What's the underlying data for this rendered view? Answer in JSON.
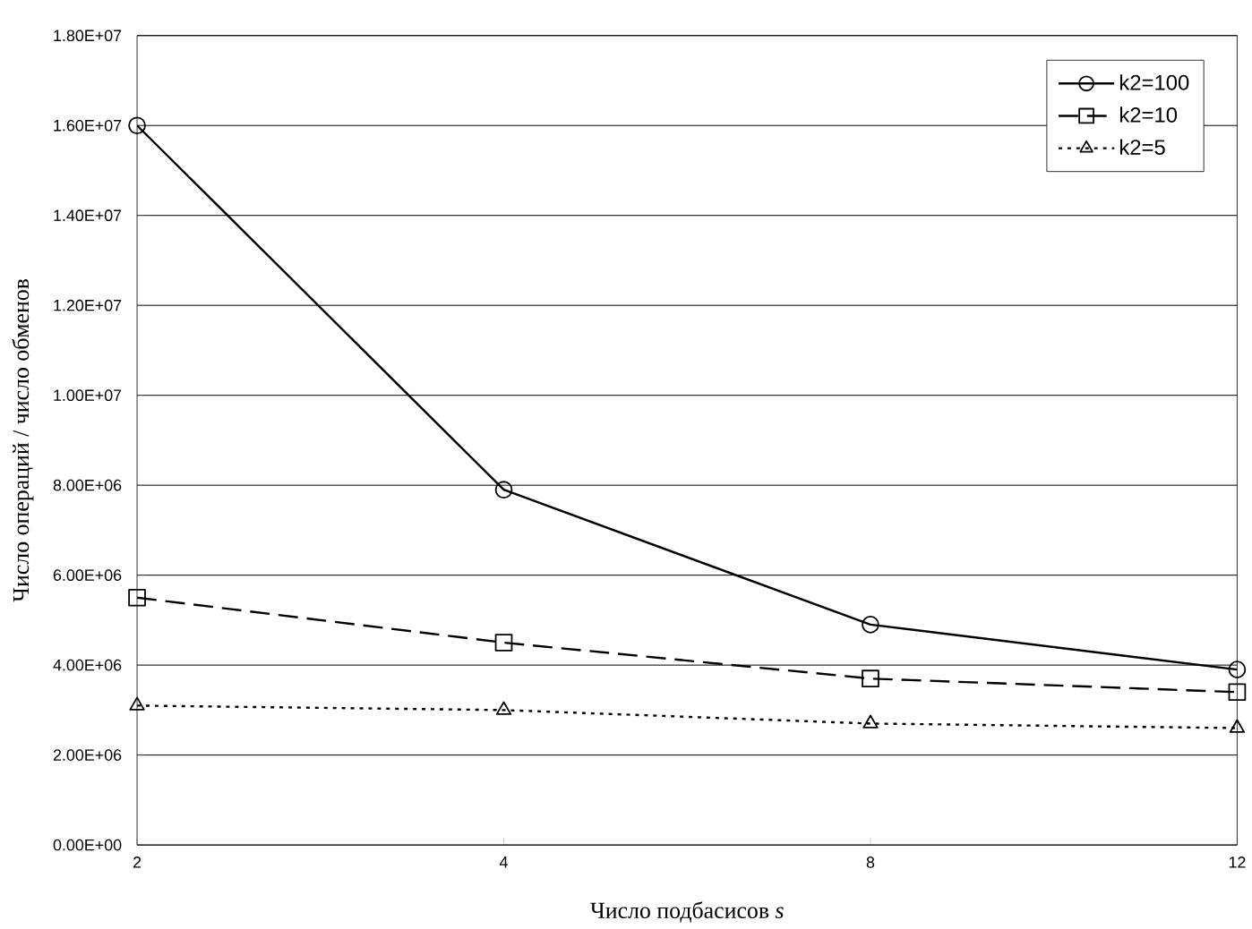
{
  "chart_data": {
    "type": "line",
    "xlabel": "Число подбасисов *s*",
    "ylabel": "Число операций / число обменов",
    "categories": [
      "2",
      "4",
      "8",
      "12"
    ],
    "ylim": [
      0,
      18000000
    ],
    "yticks": [
      {
        "value": 0,
        "label": "0.00E+00"
      },
      {
        "value": 2000000,
        "label": "2.00E+06"
      },
      {
        "value": 4000000,
        "label": "4.00E+06"
      },
      {
        "value": 6000000,
        "label": "6.00E+06"
      },
      {
        "value": 8000000,
        "label": "8.00E+06"
      },
      {
        "value": 10000000,
        "label": "1.00E+07"
      },
      {
        "value": 12000000,
        "label": "1.20E+07"
      },
      {
        "value": 14000000,
        "label": "1.40E+07"
      },
      {
        "value": 16000000,
        "label": "1.60E+07"
      },
      {
        "value": 18000000,
        "label": "1.80E+07"
      }
    ],
    "grid": "y",
    "legend": "top right",
    "series": [
      {
        "name": "k2=100",
        "color": "#000000",
        "marker": "circle",
        "line_style": "solid",
        "values": [
          16000000,
          7900000,
          4900000,
          3900000
        ]
      },
      {
        "name": "k2=10",
        "color": "#000000",
        "marker": "square",
        "line_style": "dashed",
        "values": [
          5500000,
          4500000,
          3700000,
          3400000
        ]
      },
      {
        "name": "k2=5",
        "color": "#000000",
        "marker": "triangle",
        "line_style": "dotted",
        "values": [
          3100000,
          3000000,
          2700000,
          2600000
        ]
      }
    ]
  }
}
